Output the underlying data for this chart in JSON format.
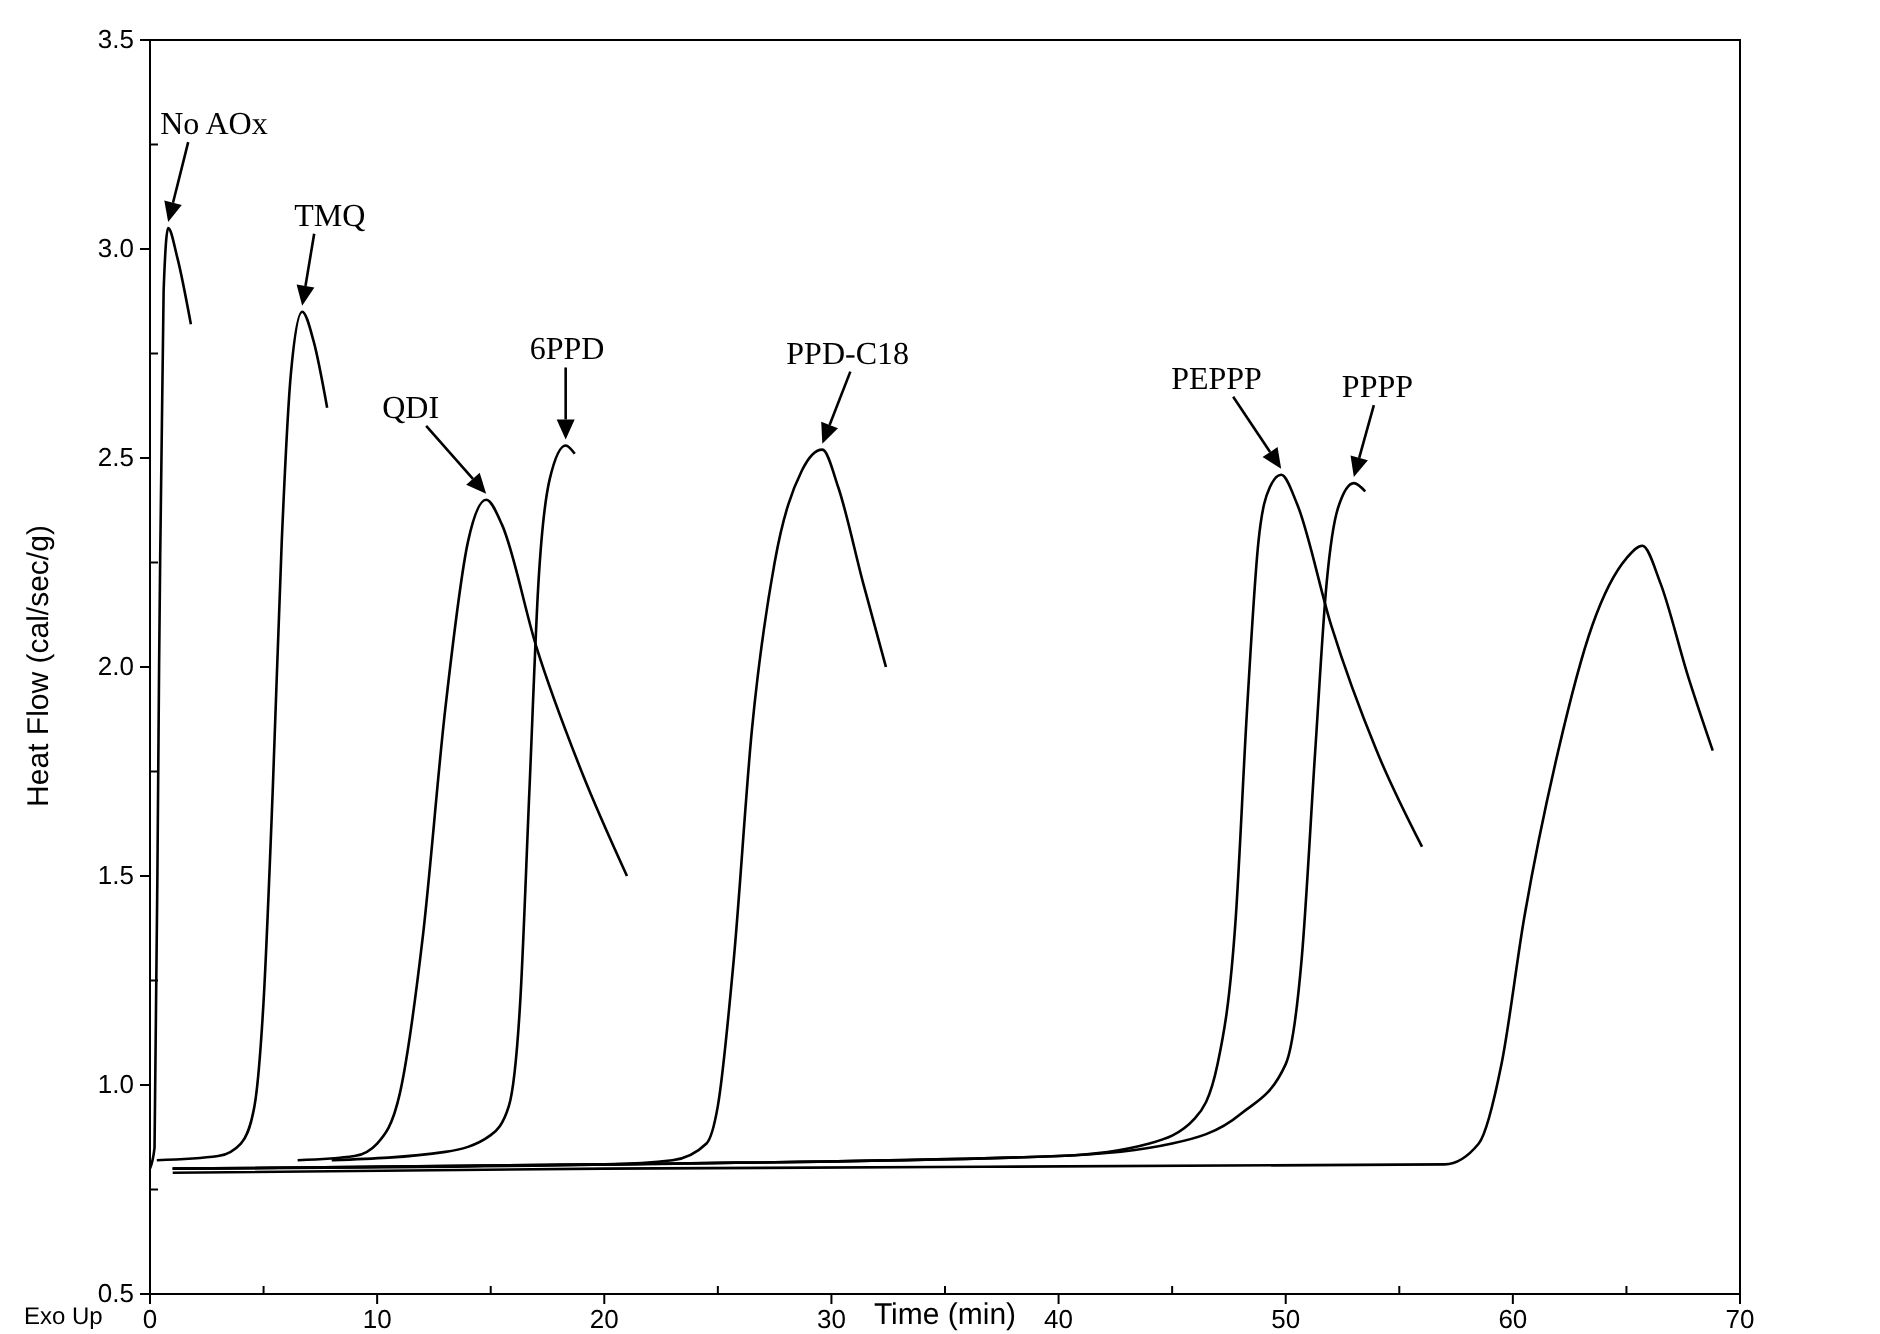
{
  "chart_data": {
    "type": "line",
    "xlabel": "Time (min)",
    "ylabel": "Heat Flow (cal/sec/g)",
    "annotations": [
      "Exo Up",
      {
        "text": "No AOx",
        "x": 0.8,
        "y": 3.05
      },
      {
        "text": "TMQ",
        "x": 6.7,
        "y": 2.85
      },
      {
        "text": "QDI",
        "x": 14.8,
        "y": 2.4
      },
      {
        "text": "6PPD",
        "x": 18.3,
        "y": 2.53
      },
      {
        "text": "PPD-C18",
        "x": 29.6,
        "y": 2.52
      },
      {
        "text": "PEPPP",
        "x": 49.8,
        "y": 2.46
      },
      {
        "text": "PPPP",
        "x": 53,
        "y": 2.44
      }
    ],
    "xlim": [
      0,
      70
    ],
    "ylim": [
      0.5,
      3.5
    ],
    "xticks": [
      0,
      {
        "value": 5,
        "label": null
      },
      10,
      {
        "value": 15,
        "label": null
      },
      20,
      {
        "value": 25,
        "label": null
      },
      30,
      {
        "value": 35,
        "label": null
      },
      40,
      {
        "value": 45,
        "label": null
      },
      50,
      {
        "value": 55,
        "label": null
      },
      60,
      {
        "value": 65,
        "label": null
      },
      70
    ],
    "yticks": [
      {
        "value": 0.5,
        "label": "0.5"
      },
      {
        "value": 0.75,
        "label": null
      },
      {
        "value": 1.0,
        "label": "1.0"
      },
      {
        "value": 1.25,
        "label": null
      },
      {
        "value": 1.5,
        "label": "1.5"
      },
      {
        "value": 1.75,
        "label": null
      },
      {
        "value": 2.0,
        "label": "2.0"
      },
      {
        "value": 2.25,
        "label": null
      },
      {
        "value": 2.5,
        "label": "2.5"
      },
      {
        "value": 2.75,
        "label": null
      },
      {
        "value": 3.0,
        "label": "3.0"
      },
      {
        "value": 3.25,
        "label": null
      },
      {
        "value": 3.5,
        "label": "3.5"
      }
    ],
    "grid": false,
    "marker": "none",
    "line_style": "solid",
    "series": [
      {
        "color": "#000000",
        "x": [
          0,
          0.2,
          0.4,
          0.6,
          0.8,
          1.2,
          1.8
        ],
        "values": [
          0.8,
          0.85,
          2.0,
          2.9,
          3.05,
          2.98,
          2.82
        ]
      },
      {
        "color": "#000000",
        "x": [
          0.3,
          3,
          4,
          4.6,
          5,
          5.4,
          5.8,
          6.2,
          6.7,
          7.2,
          7.8
        ],
        "values": [
          0.82,
          0.83,
          0.86,
          0.95,
          1.2,
          1.7,
          2.3,
          2.7,
          2.85,
          2.78,
          2.62
        ]
      },
      {
        "color": "#000000",
        "x": [
          6.5,
          9,
          10,
          11,
          12,
          13,
          14,
          14.8,
          15.5,
          17,
          19,
          21
        ],
        "values": [
          0.82,
          0.83,
          0.86,
          0.98,
          1.35,
          1.9,
          2.3,
          2.4,
          2.34,
          2.05,
          1.75,
          1.5
        ]
      },
      {
        "color": "#000000",
        "x": [
          8,
          13,
          15,
          15.8,
          16.3,
          16.7,
          17.1,
          17.6,
          18.3,
          18.7
        ],
        "values": [
          0.82,
          0.84,
          0.88,
          0.95,
          1.2,
          1.7,
          2.2,
          2.45,
          2.53,
          2.51
        ]
      },
      {
        "color": "#000000",
        "x": [
          1,
          20,
          23,
          24.5,
          25,
          25.7,
          26.5,
          27.5,
          28.7,
          29.6,
          30.3,
          31.4,
          32.4
        ],
        "values": [
          0.8,
          0.81,
          0.82,
          0.86,
          0.95,
          1.3,
          1.85,
          2.25,
          2.47,
          2.52,
          2.43,
          2.2,
          2.0
        ]
      },
      {
        "color": "#000000",
        "x": [
          1,
          20,
          40,
          44,
          46,
          47,
          47.8,
          48.3,
          48.8,
          49.3,
          49.8,
          50.5,
          52,
          54,
          56
        ],
        "values": [
          0.8,
          0.81,
          0.83,
          0.86,
          0.92,
          1.05,
          1.4,
          1.9,
          2.3,
          2.43,
          2.46,
          2.39,
          2.1,
          1.8,
          1.57
        ]
      },
      {
        "color": "#000000",
        "x": [
          1,
          20,
          40,
          45,
          48,
          50,
          50.7,
          51.3,
          51.8,
          52.3,
          53,
          53.5
        ],
        "values": [
          0.8,
          0.81,
          0.83,
          0.86,
          0.93,
          1.05,
          1.3,
          1.8,
          2.2,
          2.38,
          2.44,
          2.42
        ]
      },
      {
        "color": "#000000",
        "x": [
          1,
          20,
          57,
          58.5,
          59.5,
          60.5,
          62,
          63.5,
          65,
          65.7,
          66.5,
          67.7,
          68.8
        ],
        "values": [
          0.79,
          0.8,
          0.81,
          0.86,
          1.05,
          1.4,
          1.8,
          2.1,
          2.26,
          2.29,
          2.2,
          1.98,
          1.8
        ]
      }
    ]
  }
}
